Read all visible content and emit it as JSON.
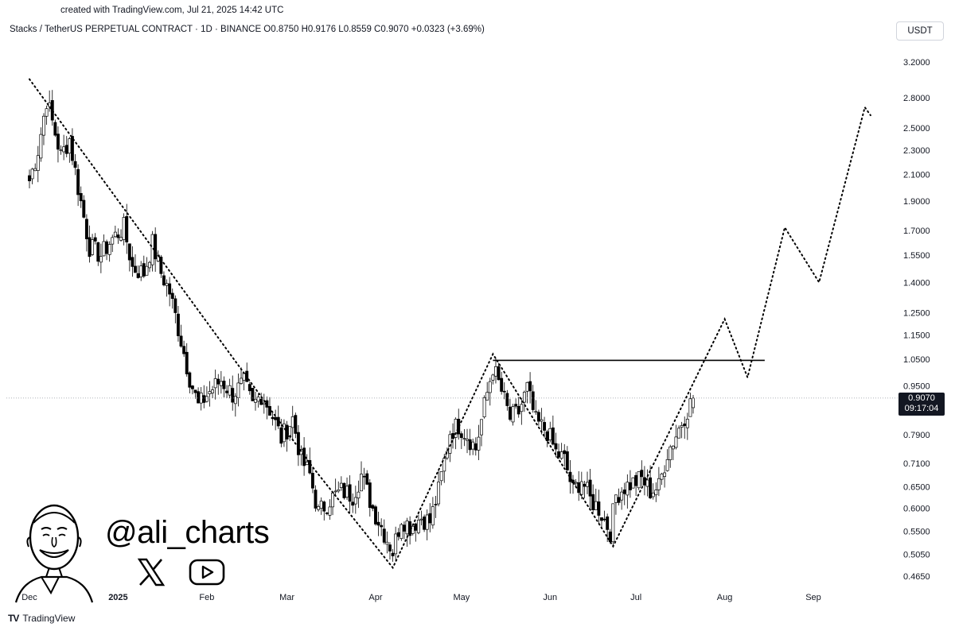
{
  "header": {
    "credit": "created with TradingView.com, Jul 21, 2025 14:42 UTC",
    "symbol_line": "Stacks / TetherUS PERPETUAL CONTRACT · 1D · BINANCE  O0.8750  H0.9176  L0.8559  C0.9070  +0.0323 (+3.69%)",
    "currency": "USDT"
  },
  "watermark": {
    "handle": "@ali_charts",
    "icons": [
      "x-logo-icon",
      "youtube-icon"
    ]
  },
  "footer": {
    "brand": "TradingView",
    "logo": "TV"
  },
  "last_price": {
    "price": "0.9070",
    "countdown": "09:17:04"
  },
  "chart_data": {
    "type": "candlestick",
    "symbol": "Stacks / TetherUS PERPETUAL CONTRACT",
    "interval": "1D",
    "exchange": "BINANCE",
    "ohlc": {
      "open": 0.875,
      "high": 0.9176,
      "low": 0.8559,
      "close": 0.907,
      "change": 0.0323,
      "change_pct": 3.69
    },
    "y_scale": "log",
    "ylim": [
      0.43,
      3.5
    ],
    "y_ticks": [
      "3.2000",
      "2.8000",
      "2.5000",
      "2.3000",
      "2.1000",
      "1.9000",
      "1.7000",
      "1.5500",
      "1.4000",
      "1.2500",
      "1.1500",
      "1.0500",
      "0.9500",
      "0.7900",
      "0.7100",
      "0.6500",
      "0.6000",
      "0.5500",
      "0.5050",
      "0.4650"
    ],
    "x_range": [
      "2024-12-01",
      "2025-09-30"
    ],
    "x_ticks": [
      {
        "label": "Dec",
        "date": "2024-12-01"
      },
      {
        "label": "2025",
        "date": "2025-01-01"
      },
      {
        "label": "Feb",
        "date": "2025-02-01"
      },
      {
        "label": "Mar",
        "date": "2025-03-01"
      },
      {
        "label": "Apr",
        "date": "2025-04-01"
      },
      {
        "label": "May",
        "date": "2025-05-01"
      },
      {
        "label": "Jun",
        "date": "2025-06-01"
      },
      {
        "label": "Jul",
        "date": "2025-07-01"
      },
      {
        "label": "Aug",
        "date": "2025-08-01"
      },
      {
        "label": "Sep",
        "date": "2025-09-01"
      }
    ],
    "anchors": [
      [
        "2024-12-01",
        2.05
      ],
      [
        "2024-12-04",
        2.3
      ],
      [
        "2024-12-07",
        2.78
      ],
      [
        "2024-12-12",
        2.25
      ],
      [
        "2024-12-15",
        2.4
      ],
      [
        "2024-12-18",
        2.0
      ],
      [
        "2024-12-22",
        1.6
      ],
      [
        "2024-12-26",
        1.55
      ],
      [
        "2024-12-30",
        1.65
      ],
      [
        "2025-01-03",
        1.72
      ],
      [
        "2025-01-06",
        1.48
      ],
      [
        "2025-01-10",
        1.45
      ],
      [
        "2025-01-13",
        1.62
      ],
      [
        "2025-01-16",
        1.45
      ],
      [
        "2025-01-19",
        1.35
      ],
      [
        "2025-01-22",
        1.18
      ],
      [
        "2025-01-26",
        0.98
      ],
      [
        "2025-01-29",
        0.88
      ],
      [
        "2025-02-02",
        0.93
      ],
      [
        "2025-02-06",
        0.97
      ],
      [
        "2025-02-10",
        0.92
      ],
      [
        "2025-02-14",
        0.96
      ],
      [
        "2025-02-17",
        0.88
      ],
      [
        "2025-02-20",
        0.92
      ],
      [
        "2025-02-23",
        0.87
      ],
      [
        "2025-02-27",
        0.78
      ],
      [
        "2025-03-03",
        0.84
      ],
      [
        "2025-03-06",
        0.72
      ],
      [
        "2025-03-09",
        0.68
      ],
      [
        "2025-03-12",
        0.59
      ],
      [
        "2025-03-16",
        0.62
      ],
      [
        "2025-03-20",
        0.64
      ],
      [
        "2025-03-24",
        0.63
      ],
      [
        "2025-03-27",
        0.68
      ],
      [
        "2025-03-31",
        0.6
      ],
      [
        "2025-04-03",
        0.56
      ],
      [
        "2025-04-07",
        0.51
      ],
      [
        "2025-04-10",
        0.58
      ],
      [
        "2025-04-13",
        0.56
      ],
      [
        "2025-04-17",
        0.58
      ],
      [
        "2025-04-20",
        0.57
      ],
      [
        "2025-04-23",
        0.64
      ],
      [
        "2025-04-27",
        0.8
      ],
      [
        "2025-04-30",
        0.82
      ],
      [
        "2025-05-03",
        0.79
      ],
      [
        "2025-05-06",
        0.75
      ],
      [
        "2025-05-09",
        0.88
      ],
      [
        "2025-05-12",
        1.02
      ],
      [
        "2025-05-15",
        0.93
      ],
      [
        "2025-05-18",
        0.84
      ],
      [
        "2025-05-21",
        0.86
      ],
      [
        "2025-05-24",
        0.94
      ],
      [
        "2025-05-27",
        0.83
      ],
      [
        "2025-05-31",
        0.8
      ],
      [
        "2025-06-03",
        0.74
      ],
      [
        "2025-06-06",
        0.72
      ],
      [
        "2025-06-09",
        0.64
      ],
      [
        "2025-06-12",
        0.67
      ],
      [
        "2025-06-15",
        0.62
      ],
      [
        "2025-06-18",
        0.6
      ],
      [
        "2025-06-22",
        0.55
      ],
      [
        "2025-06-24",
        0.63
      ],
      [
        "2025-06-27",
        0.65
      ],
      [
        "2025-06-30",
        0.66
      ],
      [
        "2025-07-03",
        0.67
      ],
      [
        "2025-07-06",
        0.64
      ],
      [
        "2025-07-09",
        0.65
      ],
      [
        "2025-07-12",
        0.74
      ],
      [
        "2025-07-15",
        0.79
      ],
      [
        "2025-07-18",
        0.85
      ],
      [
        "2025-07-21",
        0.907
      ]
    ],
    "annotations": {
      "dotted_path": [
        [
          "2024-12-01",
          3.0
        ],
        [
          "2025-03-10",
          0.7
        ],
        [
          "2025-04-07",
          0.48
        ],
        [
          "2025-05-12",
          1.07
        ],
        [
          "2025-06-23",
          0.52
        ],
        [
          "2025-08-01",
          1.22
        ],
        [
          "2025-08-09",
          0.98
        ],
        [
          "2025-08-22",
          1.72
        ],
        [
          "2025-09-03",
          1.4
        ],
        [
          "2025-09-19",
          2.7
        ],
        [
          "2025-09-21",
          2.62
        ]
      ],
      "resistance_line": {
        "price": 1.045,
        "from": "2025-05-12",
        "to": "2025-08-15"
      },
      "current_price_line": 0.907
    }
  }
}
